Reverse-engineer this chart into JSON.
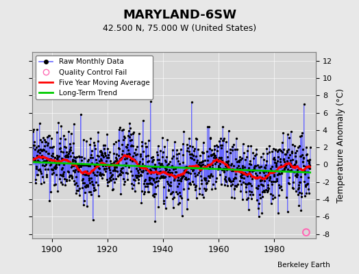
{
  "title": "MARYLAND-6SW",
  "subtitle": "42.500 N, 75.000 W (United States)",
  "ylabel": "Temperature Anomaly (°C)",
  "credit": "Berkeley Earth",
  "xlim": [
    1893,
    1995
  ],
  "ylim": [
    -8.5,
    13
  ],
  "yticks": [
    -8,
    -6,
    -4,
    -2,
    0,
    2,
    4,
    6,
    8,
    10,
    12
  ],
  "xticks": [
    1900,
    1920,
    1940,
    1960,
    1980
  ],
  "bg_color": "#e8e8e8",
  "plot_bg_color": "#d8d8d8",
  "raw_line_color": "#6666ff",
  "raw_dot_color": "#000000",
  "moving_avg_color": "#ff0000",
  "trend_color": "#00cc00",
  "qc_fail_color": "#ff69b4",
  "seed": 42,
  "n_years": 100,
  "start_year": 1893,
  "months_per_year": 12,
  "moving_avg_window": 60,
  "qc_fail_x": 1991.5,
  "qc_fail_y": -7.8
}
